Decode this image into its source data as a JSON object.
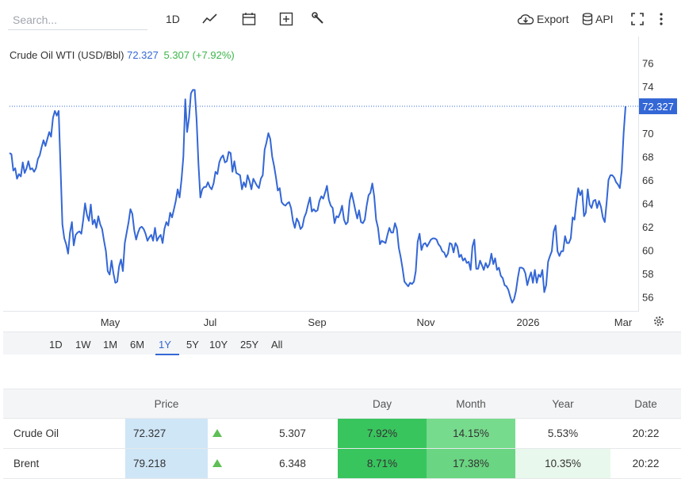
{
  "toolbar": {
    "search_placeholder": "Search...",
    "period": "1D",
    "export_label": "Export",
    "api_label": "API",
    "icons": [
      "line-chart-icon",
      "calendar-icon",
      "plus-box-icon",
      "wrench-icon",
      "cloud-download-icon",
      "database-icon",
      "fullscreen-icon",
      "more-vertical-icon"
    ]
  },
  "legend": {
    "name": "Crude Oil WTI (USD/Bbl)",
    "price": "72.327",
    "change": "5.307 (+7.92%)"
  },
  "last_price_label": "72.327",
  "ranges": [
    "1D",
    "1W",
    "1M",
    "6M",
    "1Y",
    "5Y",
    "10Y",
    "25Y",
    "All"
  ],
  "active_range": "1Y",
  "colors": {
    "line": "#3467d6",
    "up": "#3bb54a",
    "price_bg": "#cfe6f7"
  },
  "chart_data": {
    "type": "line",
    "series": [
      {
        "name": "Crude Oil WTI (USD/Bbl)",
        "values": [
          68.3,
          68.2,
          66.8,
          67.0,
          66.1,
          66.5,
          66.3,
          67.5,
          66.6,
          67.0,
          67.6,
          66.9,
          67.0,
          66.7,
          67.0,
          67.8,
          68.1,
          68.8,
          69.4,
          68.9,
          69.5,
          70.1,
          69.7,
          71.3,
          71.9,
          71.5,
          71.9,
          67.0,
          62.2,
          61.0,
          60.5,
          59.7,
          61.5,
          62.4,
          60.4,
          61.3,
          61.5,
          61.6,
          61.4,
          62.6,
          64.0,
          63.0,
          62.5,
          63.9,
          62.2,
          62.6,
          61.9,
          62.9,
          62.2,
          61.8,
          60.8,
          59.9,
          58.2,
          57.9,
          59.1,
          58.0,
          57.2,
          57.3,
          58.6,
          59.2,
          58.2,
          60.6,
          61.5,
          62.4,
          63.5,
          63.1,
          61.7,
          60.9,
          61.5,
          61.9,
          62.0,
          61.8,
          61.4,
          60.8,
          61.1,
          61.3,
          60.8,
          61.9,
          60.8,
          61.1,
          61.3,
          60.6,
          61.8,
          62.4,
          62.1,
          63.2,
          62.8,
          63.5,
          64.2,
          65.2,
          64.5,
          66.0,
          68.0,
          72.9,
          70.1,
          71.3,
          73.4,
          73.7,
          73.7,
          71.1,
          67.4,
          64.5,
          65.2,
          65.4,
          65.4,
          65.8,
          65.4,
          65.2,
          65.7,
          66.7,
          66.5,
          67.5,
          67.9,
          68.1,
          67.5,
          67.6,
          68.4,
          68.3,
          66.7,
          67.6,
          66.6,
          66.5,
          66.4,
          65.2,
          65.8,
          65.4,
          66.4,
          65.9,
          65.2,
          66.1,
          65.8,
          65.5,
          65.3,
          66.1,
          66.4,
          68.6,
          69.2,
          70.0,
          69.5,
          68.0,
          67.2,
          66.2,
          65.1,
          65.3,
          64.1,
          63.9,
          63.8,
          64.0,
          64.1,
          63.6,
          62.5,
          61.9,
          62.7,
          62.4,
          61.8,
          62.0,
          62.8,
          63.2,
          63.9,
          64.5,
          63.3,
          63.5,
          63.3,
          63.4,
          64.2,
          64.6,
          64.4,
          64.9,
          65.5,
          64.3,
          63.8,
          63.6,
          62.3,
          62.9,
          62.8,
          63.2,
          63.8,
          62.6,
          62.2,
          62.4,
          64.2,
          64.9,
          64.2,
          63.4,
          62.7,
          63.4,
          62.4,
          62.3,
          62.6,
          63.8,
          64.7,
          64.9,
          65.7,
          64.6,
          62.6,
          61.9,
          60.5,
          60.8,
          60.7,
          60.6,
          61.3,
          61.9,
          61.5,
          61.5,
          62.3,
          61.8,
          60.2,
          59.4,
          58.4,
          57.3,
          57.1,
          56.9,
          57.2,
          57.1,
          57.3,
          58.2,
          60.7,
          61.4,
          60.0,
          60.5,
          60.6,
          60.3,
          60.6,
          60.9,
          61.0,
          61.0,
          60.9,
          60.5,
          60.3,
          59.9,
          59.8,
          59.4,
          59.7,
          60.6,
          60.5,
          59.8,
          60.6,
          60.3,
          59.4,
          59.6,
          59.1,
          59.3,
          58.9,
          59.0,
          58.3,
          60.3,
          60.9,
          58.4,
          58.4,
          59.1,
          58.7,
          58.3,
          58.9,
          58.5,
          58.8,
          59.7,
          58.8,
          59.3,
          58.3,
          58.5,
          57.8,
          57.6,
          57.0,
          56.9,
          56.6,
          56.0,
          55.5,
          55.8,
          56.5,
          57.6,
          58.5,
          58.5,
          58.4,
          58.0,
          57.0,
          57.6,
          58.1,
          57.2,
          58.3,
          57.2,
          57.9,
          57.7,
          58.3,
          56.4,
          57.0,
          59.0,
          59.5,
          59.9,
          61.6,
          62.1,
          59.9,
          59.5,
          59.9,
          59.9,
          61.2,
          60.6,
          60.6,
          61.0,
          62.8,
          62.6,
          64.1,
          65.3,
          64.7,
          65.1,
          62.9,
          63.2,
          65.2,
          63.9,
          63.6,
          64.2,
          64.3,
          63.6,
          64.2,
          63.7,
          62.8,
          62.4,
          64.1,
          66.0,
          66.4,
          66.4,
          66.2,
          65.8,
          65.6,
          65.3,
          66.8,
          70.0,
          72.3
        ]
      }
    ],
    "x_tick_labels": [
      "May",
      "Jul",
      "Sep",
      "Nov",
      "2026",
      "Mar"
    ],
    "y_ticks": [
      56,
      58,
      60,
      62,
      64,
      66,
      68,
      70,
      72,
      74,
      76
    ],
    "ylim": [
      54.8,
      78
    ],
    "grid": false
  },
  "table": {
    "headers": [
      "Price",
      "Day",
      "Month",
      "Year",
      "Date"
    ],
    "rows": [
      {
        "name": "Crude Oil",
        "price": "72.327",
        "change": "5.307",
        "day": "7.92%",
        "month": "14.15%",
        "year": "5.53%",
        "date": "20:22",
        "day_bg": "#39c55e",
        "month_bg": "#77db8d",
        "year_bg": "#ffffff"
      },
      {
        "name": "Brent",
        "price": "79.218",
        "change": "6.348",
        "day": "8.71%",
        "month": "17.38%",
        "year": "10.35%",
        "date": "20:22",
        "day_bg": "#39c55e",
        "month_bg": "#6ad582",
        "year_bg": "#e8f8ec"
      }
    ]
  }
}
